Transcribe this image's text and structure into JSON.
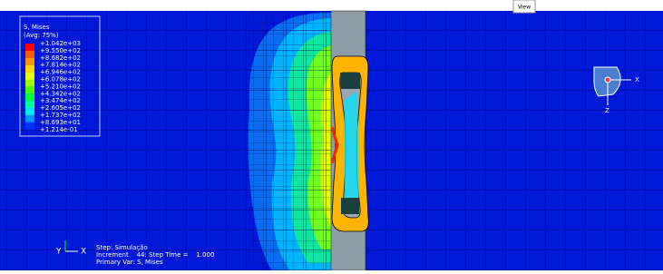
{
  "toolbar": {
    "label": "View"
  },
  "legend": {
    "title": "S, Mises",
    "subtitle": "(Avg: 75%)",
    "values": [
      "+1.042e+03",
      "+9.550e+02",
      "+8.682e+02",
      "+7.814e+02",
      "+6.946e+02",
      "+6.078e+02",
      "+5.210e+02",
      "+4.342e+02",
      "+3.474e+02",
      "+2.605e+02",
      "+1.737e+02",
      "+8.693e+01",
      "+1.214e-01"
    ],
    "colors": [
      "#ff0000",
      "#ff5a00",
      "#ff9600",
      "#ffd200",
      "#e6ff00",
      "#a0ff00",
      "#46ff00",
      "#00ff3c",
      "#00ffa0",
      "#00e6ff",
      "#0096ff",
      "#0032ff"
    ]
  },
  "status": {
    "lines": [
      "Step: Simulação",
      "Increment    44: Step Time =    1.000",
      "Primary Var: S, Mises"
    ]
  },
  "triad": {
    "y": "Y",
    "x": "X"
  },
  "view_cube": {
    "x": "X",
    "z": "Z"
  }
}
